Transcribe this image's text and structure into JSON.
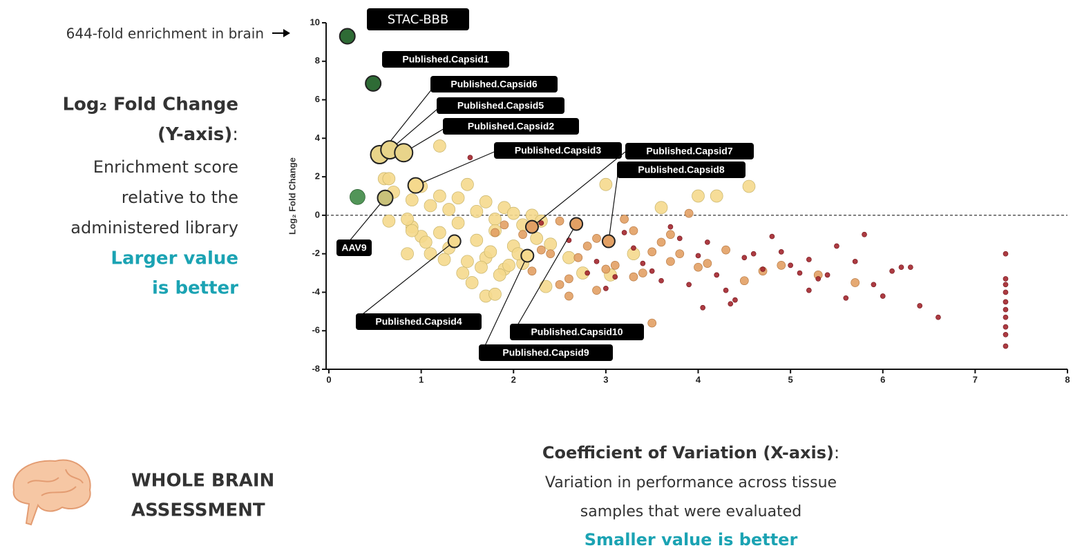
{
  "chart_data": {
    "type": "scatter",
    "ylabel": "Log₂ Fold Change",
    "xlim": [
      0,
      8
    ],
    "xticks": [
      0,
      1,
      2,
      3,
      4,
      5,
      6,
      7,
      8
    ],
    "ylim": [
      -8,
      10
    ],
    "yticks": [
      -8,
      -6,
      -4,
      -2,
      0,
      2,
      4,
      6,
      8,
      10
    ],
    "grid": false,
    "reference_line": 0,
    "series": [
      {
        "color": "#f5d98d",
        "x": [
          0.6,
          0.7,
          0.9,
          1.0,
          1.1,
          1.2,
          1.3,
          1.4,
          1.5,
          1.6,
          1.7,
          1.8,
          1.9,
          2.0,
          2.1,
          2.2,
          2.3,
          0.9,
          1.0,
          1.2,
          1.4,
          1.6,
          1.8,
          2.0,
          1.1,
          1.3,
          1.5,
          1.7,
          1.9,
          2.1,
          0.65,
          0.85,
          1.05,
          1.25,
          1.45,
          1.65,
          1.85,
          2.05,
          2.25,
          1.55,
          1.75,
          1.95,
          2.4,
          2.6,
          1.7,
          1.8,
          0.9,
          0.85,
          1.2,
          0.65,
          2.75,
          3.0,
          3.3,
          3.6,
          4.0,
          4.2,
          4.55,
          3.05,
          2.35
        ],
        "values": [
          1.9,
          1.2,
          0.8,
          1.5,
          0.5,
          1.0,
          0.3,
          0.9,
          1.6,
          0.2,
          0.7,
          -0.2,
          0.4,
          0.1,
          -0.5,
          0.0,
          -0.3,
          -0.6,
          -1.1,
          -0.9,
          -0.4,
          -1.3,
          -0.8,
          -1.6,
          -2.0,
          -1.7,
          -2.4,
          -2.2,
          -2.8,
          -2.5,
          -0.3,
          -0.2,
          -1.4,
          -2.3,
          -3.0,
          -2.7,
          -3.1,
          -2.0,
          -1.2,
          -3.5,
          -1.9,
          -2.6,
          -1.5,
          -2.2,
          -4.2,
          -4.1,
          -0.8,
          -2.0,
          3.6,
          1.9,
          -3.0,
          1.6,
          -2.0,
          0.4,
          1.0,
          1.0,
          1.5,
          -3.1,
          -3.7
        ]
      },
      {
        "color": "#e2a064",
        "x": [
          1.9,
          2.1,
          2.3,
          2.5,
          2.7,
          2.9,
          3.1,
          3.3,
          3.5,
          3.7,
          2.2,
          2.4,
          2.6,
          2.8,
          3.0,
          3.2,
          3.4,
          3.6,
          3.8,
          4.0,
          2.5,
          2.9,
          3.3,
          3.7,
          4.1,
          4.5,
          4.9,
          5.3,
          5.7,
          3.9,
          4.3,
          4.7,
          2.6,
          3.5,
          1.8
        ],
        "values": [
          -0.5,
          -1.0,
          -1.8,
          -0.3,
          -2.2,
          -1.2,
          -2.6,
          -0.8,
          -1.9,
          -2.4,
          -2.9,
          -2.0,
          -3.3,
          -1.6,
          -2.8,
          -0.2,
          -3.0,
          -1.4,
          -2.0,
          -2.7,
          -3.6,
          -3.9,
          -3.2,
          -1.0,
          -2.5,
          -3.4,
          -2.6,
          -3.1,
          -3.5,
          0.1,
          -1.8,
          -2.9,
          -4.2,
          -5.6,
          -0.9
        ]
      },
      {
        "color": "#a3262d",
        "x": [
          2.3,
          2.6,
          2.9,
          3.1,
          3.3,
          3.5,
          3.7,
          3.9,
          4.1,
          4.3,
          4.5,
          4.7,
          4.9,
          5.1,
          5.3,
          5.5,
          5.7,
          5.9,
          6.1,
          6.3,
          6.6,
          2.8,
          3.2,
          3.6,
          4.0,
          4.4,
          4.8,
          5.2,
          5.6,
          6.0,
          6.4,
          3.4,
          3.8,
          4.2,
          4.6,
          5.0,
          5.4,
          5.8,
          6.2,
          4.05,
          4.35,
          5.2,
          3.0,
          7.33,
          7.33,
          7.33,
          7.33,
          7.33,
          7.33,
          7.33,
          7.33,
          7.33,
          7.33,
          1.53
        ],
        "values": [
          -0.4,
          -1.3,
          -2.4,
          -3.2,
          -1.7,
          -2.9,
          -0.6,
          -3.6,
          -1.4,
          -3.9,
          -2.2,
          -2.8,
          -1.9,
          -3.0,
          -3.3,
          -1.6,
          -2.4,
          -3.6,
          -2.9,
          -2.7,
          -5.3,
          -3.0,
          -0.9,
          -3.4,
          -2.1,
          -4.4,
          -1.1,
          -3.9,
          -4.3,
          -4.2,
          -4.7,
          -2.5,
          -1.2,
          -3.1,
          -2.0,
          -2.6,
          -3.1,
          -1.0,
          -2.7,
          -4.8,
          -4.6,
          -2.3,
          -3.8,
          -2.0,
          -3.3,
          -3.6,
          -4.0,
          -4.5,
          -4.9,
          -5.3,
          -5.8,
          -6.2,
          -6.8,
          3.0
        ]
      },
      {
        "color": "#3f8a46",
        "x": [
          0.31
        ],
        "values": [
          0.95
        ]
      }
    ],
    "annotations": [
      {
        "label": "STAC-BBB",
        "x": 0.2,
        "y": 9.3,
        "color": "#2e6b35"
      },
      {
        "label": "Published.Capsid1",
        "x": 0.48,
        "y": 6.85,
        "color": "#2e6b35"
      },
      {
        "label": "Published.Capsid6",
        "x": 0.55,
        "y": 3.15,
        "color": "#e8d48a"
      },
      {
        "label": "Published.Capsid5",
        "x": 0.66,
        "y": 3.4,
        "color": "#e8d48a"
      },
      {
        "label": "Published.Capsid2",
        "x": 0.81,
        "y": 3.25,
        "color": "#e8d48a"
      },
      {
        "label": "Published.Capsid3",
        "x": 0.94,
        "y": 1.55,
        "color": "#f5d98d"
      },
      {
        "label": "Published.Capsid7",
        "x": 2.2,
        "y": -0.6,
        "color": "#e2a064"
      },
      {
        "label": "Published.Capsid8",
        "x": 3.03,
        "y": -1.35,
        "color": "#e2a064"
      },
      {
        "label": "AAV9",
        "x": 0.61,
        "y": 0.9,
        "color": "#c9c17a"
      },
      {
        "label": "Published.Capsid4",
        "x": 1.36,
        "y": -1.35,
        "color": "#f5d98d"
      },
      {
        "label": "Published.Capsid10",
        "x": 2.68,
        "y": -0.45,
        "color": "#e2a064"
      },
      {
        "label": "Published.Capsid9",
        "x": 2.15,
        "y": -2.1,
        "color": "#f5d98d"
      }
    ]
  },
  "left_note": {
    "arrow_text": "644-fold enrichment in brain",
    "title": "Log₂ Fold Change",
    "axis": "(Y-axis)",
    "colon": ":",
    "lines": [
      "Enrichment score",
      "relative to the",
      "administered library"
    ],
    "highlight": [
      "Larger value",
      "is better"
    ]
  },
  "badge": [
    "WHOLE BRAIN",
    "ASSESSMENT"
  ],
  "bottom_note": {
    "title": "Coefficient of Variation (X-axis)",
    "colon": ":",
    "lines": [
      "Variation in performance across  tissue",
      "samples that were evaluated"
    ],
    "highlight": "Smaller value is better"
  }
}
